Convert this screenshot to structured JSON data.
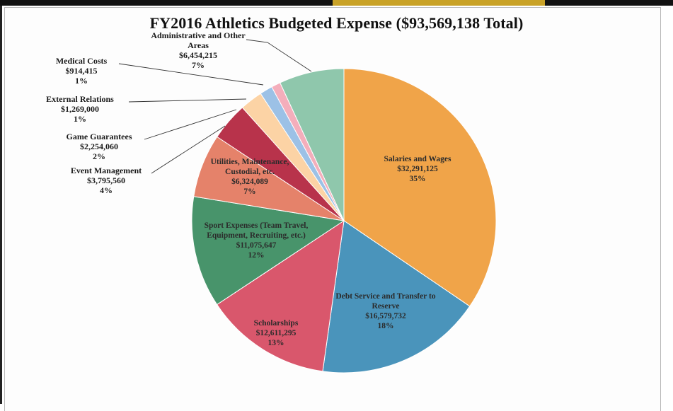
{
  "chart_data": {
    "type": "pie",
    "title": "FY2016 Athletics Budgeted Expense ($93,569,138 Total)",
    "slices": [
      {
        "label": [
          "Salaries and Wages"
        ],
        "amount": "$32,291,125",
        "percent": "35%",
        "value": 32291125,
        "color": "#f0a449",
        "label_placement": "inside"
      },
      {
        "label": [
          "Debt Service and Transfer to",
          "Reserve"
        ],
        "amount": "$16,579,732",
        "percent": "18%",
        "value": 16579732,
        "color": "#4a94bb",
        "label_placement": "inside"
      },
      {
        "label": [
          "Scholarships"
        ],
        "amount": "$12,611,295",
        "percent": "13%",
        "value": 12611295,
        "color": "#d9576c",
        "label_placement": "inside"
      },
      {
        "label": [
          "Sport Expenses (Team Travel,",
          "Equipment, Recruiting, etc.)"
        ],
        "amount": "$11,075,647",
        "percent": "12%",
        "value": 11075647,
        "color": "#48946b",
        "label_placement": "inside"
      },
      {
        "label": [
          "Utilities, Maintenance,",
          "Custodial, etc."
        ],
        "amount": "$6,324,089",
        "percent": "7%",
        "value": 6324089,
        "color": "#e5826a",
        "label_placement": "inside"
      },
      {
        "label": [
          "Event Management"
        ],
        "amount": "$3,795,560",
        "percent": "4%",
        "value": 3795560,
        "color": "#b8334b",
        "label_placement": "outside"
      },
      {
        "label": [
          "Game Guarantees"
        ],
        "amount": "$2,254,060",
        "percent": "2%",
        "value": 2254060,
        "color": "#fcd3a5",
        "label_placement": "outside"
      },
      {
        "label": [
          "External Relations"
        ],
        "amount": "$1,269,000",
        "percent": "1%",
        "value": 1269000,
        "color": "#9cc1e6",
        "label_placement": "outside"
      },
      {
        "label": [
          "Medical Costs"
        ],
        "amount": "$914,415",
        "percent": "1%",
        "value": 914415,
        "color": "#f4aebb",
        "label_placement": "outside"
      },
      {
        "label": [
          "Administrative and Other",
          "Areas"
        ],
        "amount": "$6,454,215",
        "percent": "7%",
        "value": 6454215,
        "color": "#8fc7ac",
        "label_placement": "outside"
      }
    ]
  }
}
